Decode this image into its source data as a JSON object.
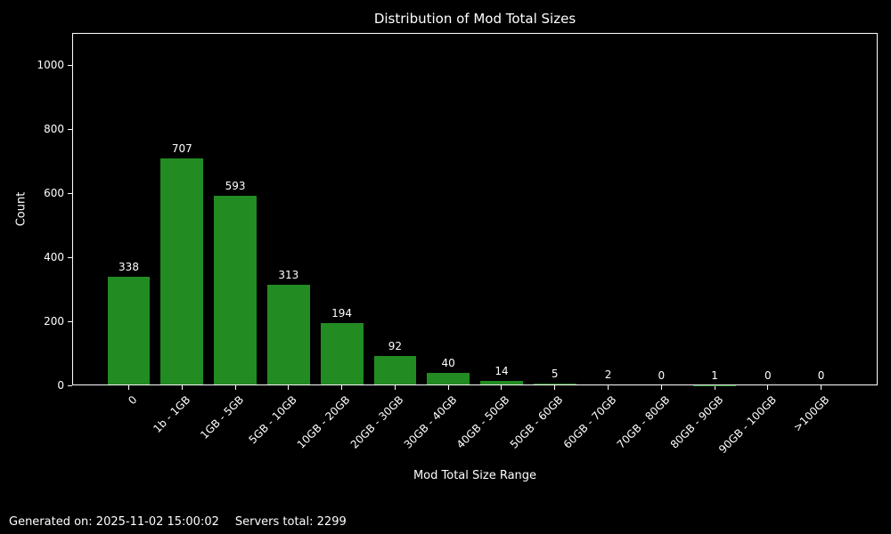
{
  "title": "Distribution of Mod Total Sizes",
  "footer": {
    "generated": "Generated on: 2025-11-02 15:00:02",
    "servers_total": "Servers total: 2299"
  },
  "chart_data": {
    "type": "bar",
    "title": "Distribution of Mod Total Sizes",
    "xlabel": "Mod Total Size Range",
    "ylabel": "Count",
    "categories": [
      "0",
      "1b - 1GB",
      "1GB - 5GB",
      "5GB - 10GB",
      "10GB - 20GB",
      "20GB - 30GB",
      "30GB - 40GB",
      "40GB - 50GB",
      "50GB - 60GB",
      "60GB - 70GB",
      "70GB - 80GB",
      "80GB - 90GB",
      "90GB - 100GB",
      ">100GB"
    ],
    "values": [
      338,
      707,
      593,
      313,
      194,
      92,
      40,
      14,
      5,
      2,
      0,
      1,
      0,
      0
    ],
    "yticks": [
      0,
      200,
      400,
      600,
      800,
      1000
    ],
    "ylim": [
      0,
      1100
    ],
    "bar_color": "#228B22",
    "background_color": "#000000",
    "text_color": "#ffffff",
    "grid": false,
    "legend": null,
    "bar_value_labels": true,
    "x_tick_rotation": 45
  }
}
